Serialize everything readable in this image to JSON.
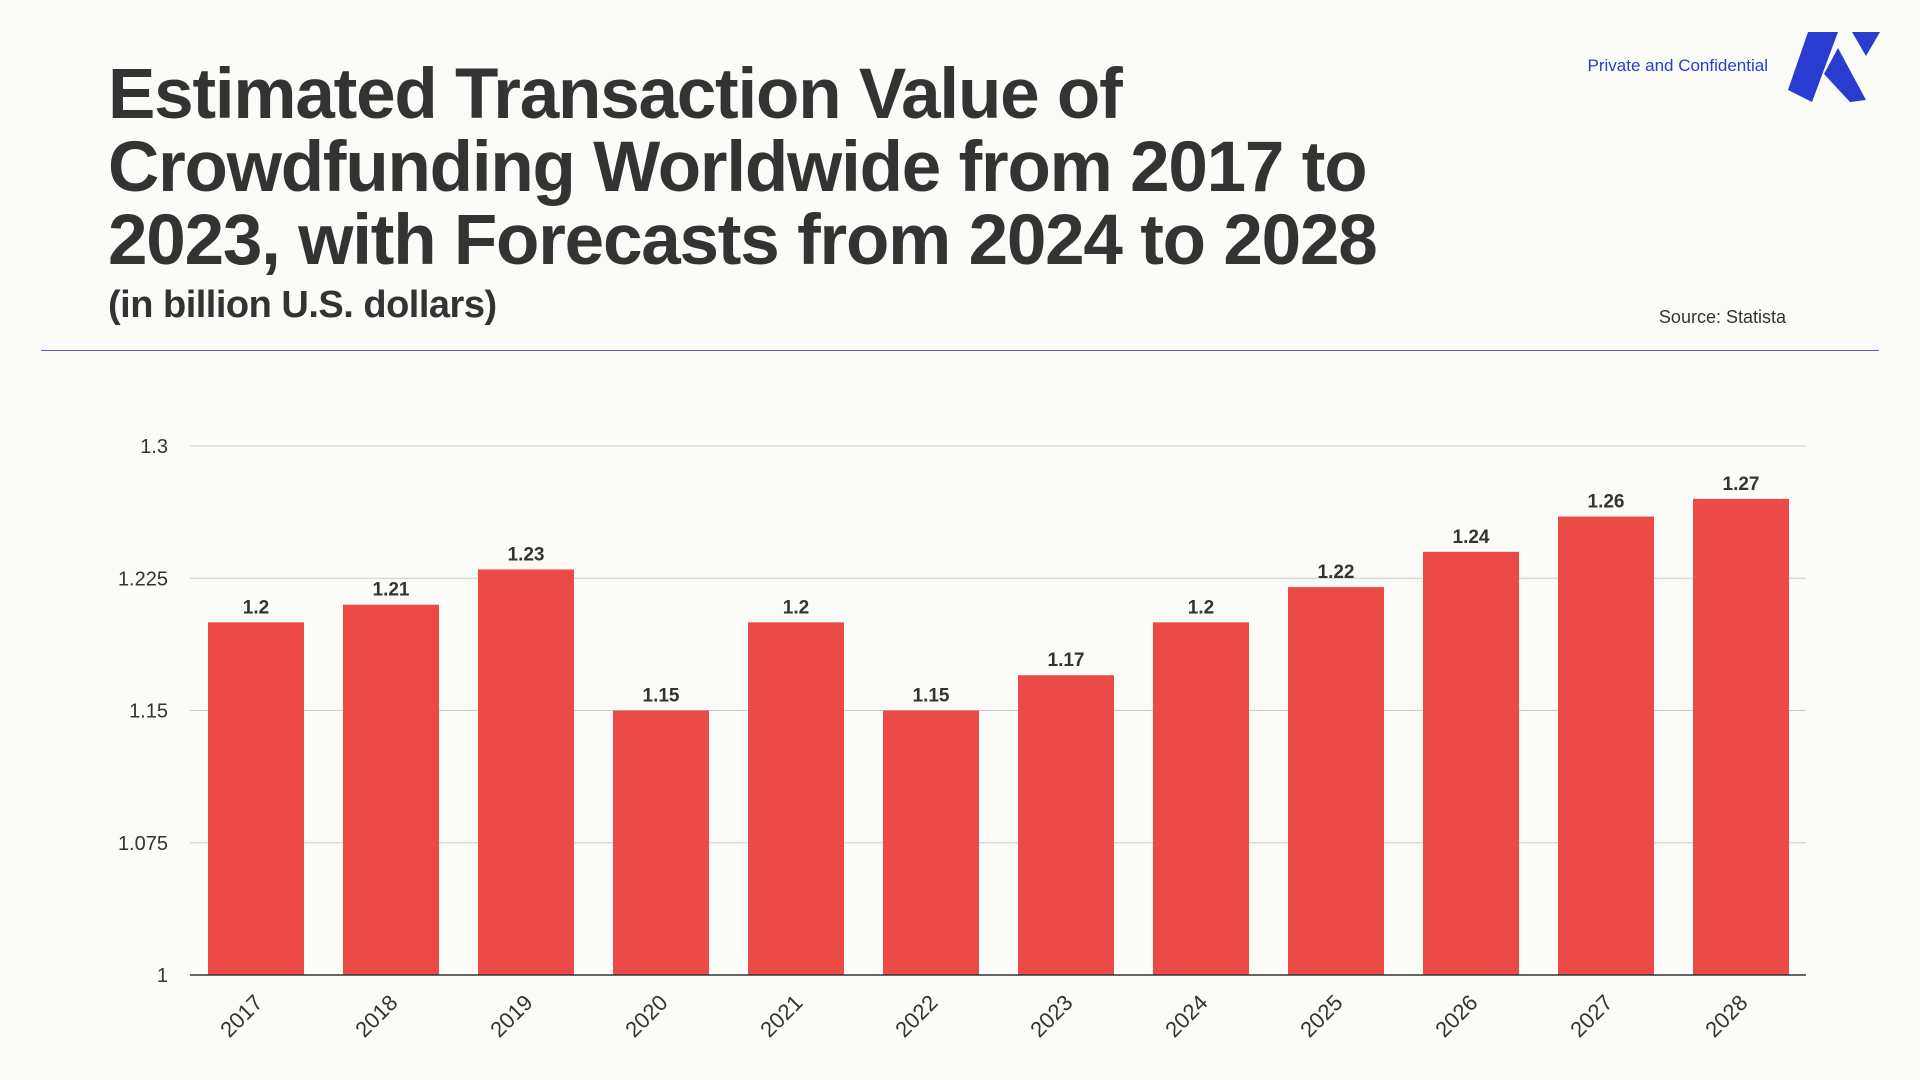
{
  "header": {
    "title_line1": "Estimated Transaction Value of",
    "title_line2": "Crowdfunding Worldwide from 2017 to",
    "title_line3": "2023, with Forecasts from 2024 to 2028",
    "subtitle": "(in billion U.S. dollars)",
    "confidential": "Private and Confidential",
    "source": "Source: Statista"
  },
  "colors": {
    "bar": "#eb4a47",
    "accent": "#2a3ccf",
    "text": "#333333",
    "grid": "#cccccc"
  },
  "chart_data": {
    "type": "bar",
    "title": "Estimated Transaction Value of Crowdfunding Worldwide from 2017 to 2023, with Forecasts from 2024 to 2028",
    "subtitle": "(in billion U.S. dollars)",
    "categories": [
      "2017",
      "2018",
      "2019",
      "2020",
      "2021",
      "2022",
      "2023",
      "2024",
      "2025",
      "2026",
      "2027",
      "2028"
    ],
    "values": [
      1.2,
      1.21,
      1.23,
      1.15,
      1.2,
      1.15,
      1.17,
      1.2,
      1.22,
      1.24,
      1.26,
      1.27
    ],
    "value_labels": [
      "1.2",
      "1.21",
      "1.23",
      "1.15",
      "1.2",
      "1.15",
      "1.17",
      "1.2",
      "1.22",
      "1.24",
      "1.26",
      "1.27"
    ],
    "yticks": [
      1,
      1.075,
      1.15,
      1.225,
      1.3
    ],
    "ytick_labels": [
      "1",
      "1.075",
      "1.15",
      "1.225",
      "1.3"
    ],
    "ylim": [
      1,
      1.3
    ],
    "xlabel": "",
    "ylabel": "",
    "grid": true,
    "legend": "none"
  }
}
